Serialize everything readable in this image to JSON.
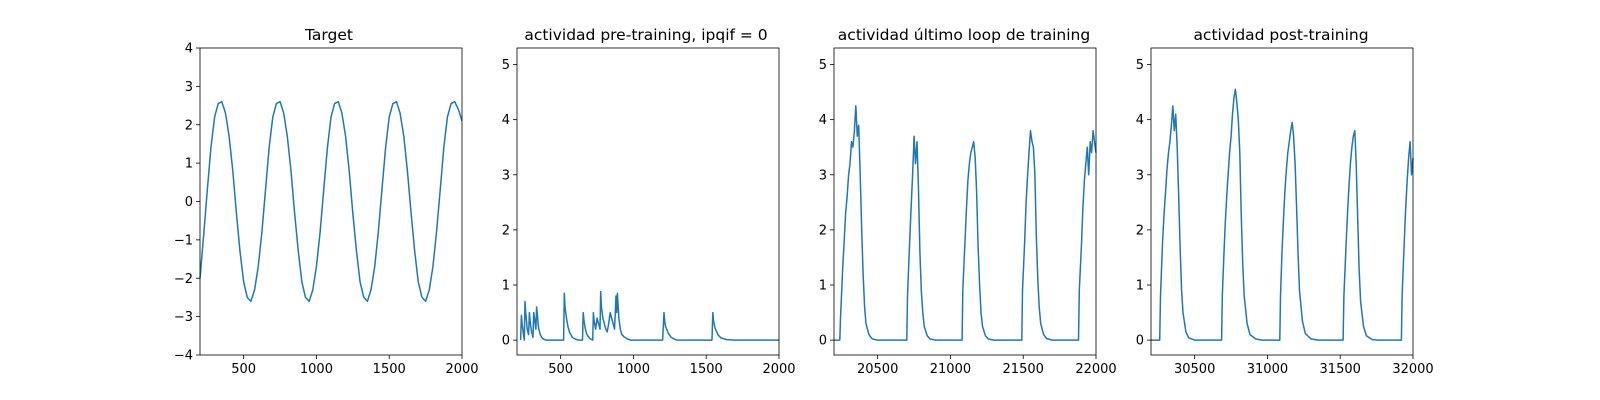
{
  "chart_data": [
    {
      "type": "line",
      "title": "Target",
      "xlim": [
        200,
        2000
      ],
      "ylim": [
        -4,
        4
      ],
      "xticks": [
        500,
        1000,
        1500,
        2000
      ],
      "yticks": [
        -4,
        -3,
        -2,
        -1,
        0,
        1,
        2,
        3,
        4
      ],
      "series": [
        {
          "x": [
            200,
            225,
            250,
            275,
            300,
            325,
            350,
            375,
            400,
            425,
            450,
            475,
            500,
            525,
            550,
            575,
            600,
            625,
            650,
            675,
            700,
            725,
            750,
            775,
            800,
            825,
            850,
            875,
            900,
            925,
            950,
            975,
            1000,
            1025,
            1050,
            1075,
            1100,
            1125,
            1150,
            1175,
            1200,
            1225,
            1250,
            1275,
            1300,
            1325,
            1350,
            1375,
            1400,
            1425,
            1450,
            1475,
            1500,
            1525,
            1550,
            1575,
            1600,
            1625,
            1650,
            1675,
            1700,
            1725,
            1750,
            1775,
            1800,
            1825,
            1850,
            1875,
            1900,
            1925,
            1950,
            1975,
            2000
          ],
          "y": [
            -2.0,
            -0.9,
            0.3,
            1.4,
            2.2,
            2.55,
            2.6,
            2.3,
            1.7,
            0.8,
            -0.3,
            -1.3,
            -2.1,
            -2.5,
            -2.6,
            -2.3,
            -1.7,
            -0.8,
            0.3,
            1.4,
            2.2,
            2.55,
            2.6,
            2.3,
            1.7,
            0.8,
            -0.3,
            -1.3,
            -2.1,
            -2.5,
            -2.6,
            -2.3,
            -1.7,
            -0.8,
            0.3,
            1.4,
            2.2,
            2.55,
            2.6,
            2.3,
            1.7,
            0.8,
            -0.3,
            -1.3,
            -2.1,
            -2.5,
            -2.6,
            -2.3,
            -1.7,
            -0.8,
            0.3,
            1.4,
            2.2,
            2.55,
            2.6,
            2.3,
            1.7,
            0.8,
            -0.3,
            -1.3,
            -2.1,
            -2.5,
            -2.6,
            -2.3,
            -1.7,
            -0.8,
            0.3,
            1.4,
            2.2,
            2.55,
            2.6,
            2.4,
            2.1
          ]
        }
      ]
    },
    {
      "type": "line",
      "title": "actividad pre-training, ipqif = 0",
      "xlim": [
        200,
        2000
      ],
      "ylim": [
        -0.27,
        5.3
      ],
      "xticks": [
        500,
        1000,
        1500,
        2000
      ],
      "yticks": [
        0,
        1,
        2,
        3,
        4,
        5
      ],
      "series": [
        {
          "x": [
            225,
            230,
            235,
            240,
            245,
            250,
            255,
            260,
            265,
            270,
            275,
            280,
            285,
            290,
            295,
            300,
            305,
            310,
            315,
            320,
            325,
            330,
            335,
            340,
            345,
            350,
            360,
            370,
            380,
            400,
            420,
            440,
            460,
            480,
            500,
            520,
            525,
            530,
            540,
            550,
            560,
            580,
            600,
            620,
            640,
            650,
            655,
            660,
            670,
            680,
            700,
            720,
            725,
            730,
            740,
            750,
            760,
            770,
            775,
            780,
            790,
            800,
            810,
            820,
            830,
            840,
            850,
            860,
            870,
            875,
            880,
            885,
            890,
            895,
            900,
            905,
            910,
            920,
            940,
            960,
            980,
            1000,
            1050,
            1100,
            1150,
            1200,
            1210,
            1215,
            1220,
            1240,
            1260,
            1280,
            1300,
            1350,
            1400,
            1450,
            1500,
            1540,
            1545,
            1550,
            1560,
            1580,
            1600,
            1640,
            1700,
            1800,
            1900,
            2000
          ],
          "y": [
            0.0,
            0.45,
            0.3,
            0.2,
            0.1,
            0.0,
            0.7,
            0.5,
            0.35,
            0.2,
            0.15,
            0.1,
            0.5,
            0.35,
            0.25,
            0.15,
            0.1,
            0.05,
            0.5,
            0.4,
            0.3,
            0.2,
            0.6,
            0.45,
            0.3,
            0.2,
            0.1,
            0.05,
            0.02,
            0.0,
            0.0,
            0.0,
            0.0,
            0.0,
            0.0,
            0.0,
            0.85,
            0.6,
            0.4,
            0.25,
            0.15,
            0.05,
            0.02,
            0.0,
            0.0,
            0.0,
            0.5,
            0.35,
            0.2,
            0.1,
            0.03,
            0.0,
            0.5,
            0.35,
            0.2,
            0.4,
            0.3,
            0.2,
            0.88,
            0.6,
            0.4,
            0.3,
            0.2,
            0.15,
            0.3,
            0.5,
            0.4,
            0.3,
            0.2,
            0.5,
            0.8,
            0.5,
            0.85,
            0.6,
            0.4,
            0.3,
            0.2,
            0.1,
            0.05,
            0.02,
            0.0,
            0.0,
            0.0,
            0.0,
            0.0,
            0.0,
            0.5,
            0.35,
            0.25,
            0.12,
            0.05,
            0.02,
            0.0,
            0.0,
            0.0,
            0.0,
            0.0,
            0.0,
            0.5,
            0.35,
            0.22,
            0.1,
            0.04,
            0.01,
            0.0,
            0.0,
            0.0,
            0.0
          ]
        }
      ]
    },
    {
      "type": "line",
      "title": "actividad último loop de training",
      "xlim": [
        20200,
        22000
      ],
      "ylim": [
        -0.27,
        5.3
      ],
      "xticks": [
        20500,
        21000,
        21500,
        22000
      ],
      "yticks": [
        0,
        1,
        2,
        3,
        4,
        5
      ],
      "series": [
        {
          "x": [
            20200,
            20240,
            20245,
            20260,
            20270,
            20280,
            20290,
            20300,
            20310,
            20320,
            20330,
            20340,
            20350,
            20360,
            20370,
            20380,
            20390,
            20400,
            20410,
            20420,
            20440,
            20460,
            20480,
            20500,
            20550,
            20600,
            20650,
            20700,
            20705,
            20720,
            20730,
            20740,
            20750,
            20760,
            20770,
            20780,
            20790,
            20800,
            20810,
            20820,
            20840,
            20860,
            20900,
            20950,
            21000,
            21050,
            21080,
            21085,
            21100,
            21110,
            21120,
            21130,
            21140,
            21150,
            21160,
            21170,
            21180,
            21190,
            21200,
            21210,
            21220,
            21240,
            21260,
            21300,
            21350,
            21400,
            21450,
            21490,
            21495,
            21510,
            21520,
            21530,
            21540,
            21550,
            21560,
            21570,
            21580,
            21590,
            21600,
            21610,
            21620,
            21640,
            21660,
            21700,
            21750,
            21800,
            21850,
            21880,
            21885,
            21900,
            21910,
            21920,
            21930,
            21940,
            21950,
            21960,
            21970,
            21980,
            21990,
            22000
          ],
          "y": [
            0.0,
            0.0,
            0.4,
            1.3,
            1.8,
            2.3,
            2.6,
            3.0,
            3.2,
            3.6,
            3.5,
            3.8,
            4.25,
            3.7,
            3.9,
            3.0,
            2.0,
            1.2,
            0.6,
            0.3,
            0.1,
            0.03,
            0.01,
            0.0,
            0.0,
            0.0,
            0.0,
            0.0,
            0.8,
            1.8,
            2.4,
            3.0,
            3.7,
            3.2,
            3.6,
            2.8,
            1.6,
            0.9,
            0.5,
            0.25,
            0.08,
            0.02,
            0.0,
            0.0,
            0.0,
            0.0,
            0.0,
            0.9,
            1.8,
            2.4,
            2.9,
            3.2,
            3.4,
            3.5,
            3.6,
            3.3,
            2.7,
            1.7,
            1.0,
            0.5,
            0.25,
            0.08,
            0.02,
            0.0,
            0.0,
            0.0,
            0.0,
            0.0,
            0.9,
            1.8,
            2.5,
            3.0,
            3.4,
            3.8,
            3.6,
            3.5,
            3.0,
            1.9,
            1.1,
            0.6,
            0.3,
            0.1,
            0.03,
            0.0,
            0.0,
            0.0,
            0.0,
            0.0,
            0.9,
            1.7,
            2.4,
            2.9,
            3.2,
            3.5,
            3.0,
            3.6,
            3.4,
            3.8,
            3.6,
            3.4
          ]
        }
      ]
    },
    {
      "type": "line",
      "title": "actividad post-training",
      "xlim": [
        30200,
        32000
      ],
      "ylim": [
        -0.27,
        5.3
      ],
      "xticks": [
        30500,
        31000,
        31500,
        32000
      ],
      "yticks": [
        0,
        1,
        2,
        3,
        4,
        5
      ],
      "series": [
        {
          "x": [
            30200,
            30260,
            30265,
            30280,
            30290,
            30300,
            30310,
            30320,
            30330,
            30340,
            30350,
            30360,
            30370,
            30380,
            30390,
            30400,
            30410,
            30420,
            30440,
            30460,
            30500,
            30550,
            30600,
            30650,
            30685,
            30690,
            30700,
            30710,
            30720,
            30730,
            30740,
            30750,
            30760,
            30770,
            30780,
            30790,
            30800,
            30810,
            30820,
            30830,
            30840,
            30860,
            30880,
            30920,
            30960,
            31000,
            31050,
            31085,
            31090,
            31100,
            31110,
            31120,
            31130,
            31140,
            31150,
            31160,
            31170,
            31180,
            31190,
            31200,
            31210,
            31220,
            31240,
            31260,
            31300,
            31350,
            31400,
            31450,
            31500,
            31520,
            31525,
            31540,
            31550,
            31560,
            31570,
            31580,
            31590,
            31600,
            31610,
            31620,
            31630,
            31640,
            31660,
            31680,
            31720,
            31760,
            31800,
            31850,
            31900,
            31920,
            31925,
            31940,
            31950,
            31960,
            31970,
            31980,
            31990,
            32000
          ],
          "y": [
            0.0,
            0.0,
            0.8,
            1.8,
            2.3,
            2.7,
            3.1,
            3.4,
            3.6,
            3.9,
            4.25,
            3.8,
            4.1,
            3.5,
            2.6,
            1.7,
            0.9,
            0.5,
            0.15,
            0.04,
            0.0,
            0.0,
            0.0,
            0.0,
            0.0,
            0.8,
            1.5,
            2.1,
            2.6,
            3.0,
            3.4,
            3.7,
            4.1,
            4.4,
            4.55,
            4.3,
            4.0,
            3.4,
            2.3,
            1.4,
            0.8,
            0.3,
            0.1,
            0.02,
            0.0,
            0.0,
            0.0,
            0.0,
            0.8,
            1.6,
            2.2,
            2.7,
            3.1,
            3.4,
            3.6,
            3.8,
            3.95,
            3.7,
            3.2,
            2.4,
            1.6,
            0.9,
            0.35,
            0.12,
            0.02,
            0.0,
            0.0,
            0.0,
            0.0,
            0.0,
            0.8,
            1.7,
            2.3,
            2.8,
            3.2,
            3.5,
            3.7,
            3.8,
            3.2,
            2.2,
            1.3,
            0.7,
            0.25,
            0.08,
            0.01,
            0.0,
            0.0,
            0.0,
            0.0,
            0.0,
            0.8,
            1.8,
            2.4,
            2.9,
            3.3,
            3.6,
            3.0,
            3.3
          ]
        }
      ]
    }
  ]
}
